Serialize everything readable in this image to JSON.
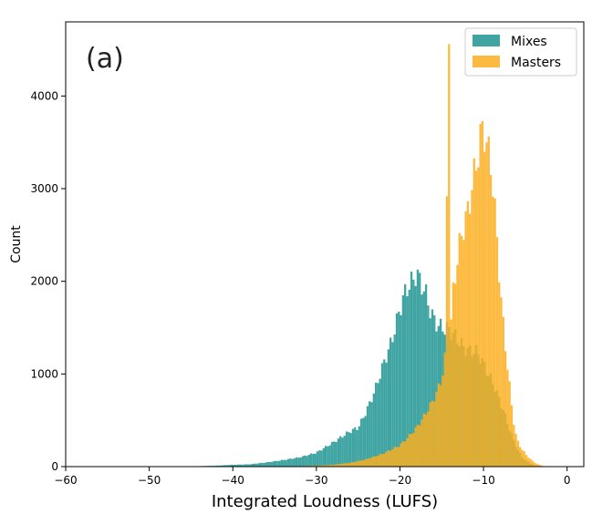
{
  "chart_data": {
    "type": "histogram",
    "panel_label": "(a)",
    "xlabel": "Integrated Loudness (LUFS)",
    "ylabel": "Count",
    "xlim": [
      -60,
      2
    ],
    "ylim": [
      0,
      4800
    ],
    "x_ticks": [
      -60,
      -50,
      -40,
      -30,
      -20,
      -10,
      0
    ],
    "x_tick_labels": [
      "−60",
      "−50",
      "−40",
      "−30",
      "−20",
      "−10",
      "0"
    ],
    "y_ticks": [
      0,
      1000,
      2000,
      3000,
      4000
    ],
    "y_tick_labels": [
      "0",
      "1000",
      "2000",
      "3000",
      "4000"
    ],
    "grid": false,
    "legend_position": "top-right",
    "bin_width": 0.25,
    "series": [
      {
        "name": "Mixes",
        "color": "#2a9a98",
        "alpha": 0.9,
        "bins": [
          [
            -44,
            5
          ],
          [
            -42,
            10
          ],
          [
            -40,
            20
          ],
          [
            -38,
            25
          ],
          [
            -36,
            45
          ],
          [
            -34,
            70
          ],
          [
            -32,
            100
          ],
          [
            -30,
            150
          ],
          [
            -28,
            260
          ],
          [
            -26,
            380
          ],
          [
            -25,
            420
          ],
          [
            -24,
            600
          ],
          [
            -23,
            820
          ],
          [
            -22,
            1100
          ],
          [
            -21,
            1350
          ],
          [
            -20,
            1700
          ],
          [
            -19.5,
            1850
          ],
          [
            -19,
            1950
          ],
          [
            -18.5,
            2000
          ],
          [
            -18,
            2090
          ],
          [
            -17.5,
            1980
          ],
          [
            -17,
            1900
          ],
          [
            -16.5,
            1720
          ],
          [
            -16,
            1600
          ],
          [
            -15.5,
            1530
          ],
          [
            -15,
            1500
          ],
          [
            -14.5,
            1490
          ],
          [
            -14,
            1470
          ],
          [
            -13.5,
            1420
          ],
          [
            -13,
            1360
          ],
          [
            -12.5,
            1300
          ],
          [
            -12,
            1260
          ],
          [
            -11.5,
            1240
          ],
          [
            -11,
            1250
          ],
          [
            -10.5,
            1200
          ],
          [
            -10,
            1110
          ],
          [
            -9.5,
            1010
          ],
          [
            -9,
            930
          ],
          [
            -8.5,
            820
          ],
          [
            -8,
            700
          ],
          [
            -7.5,
            580
          ],
          [
            -7,
            440
          ],
          [
            -6.5,
            310
          ],
          [
            -6,
            200
          ],
          [
            -5.5,
            120
          ],
          [
            -5,
            70
          ],
          [
            -4.5,
            40
          ],
          [
            -4,
            15
          ],
          [
            -3,
            5
          ],
          [
            -2,
            0
          ]
        ]
      },
      {
        "name": "Masters",
        "color": "#fbaf1e",
        "alpha": 0.85,
        "bins": [
          [
            -34,
            0
          ],
          [
            -30,
            10
          ],
          [
            -28,
            20
          ],
          [
            -26,
            40
          ],
          [
            -24,
            80
          ],
          [
            -22,
            140
          ],
          [
            -20,
            230
          ],
          [
            -19,
            320
          ],
          [
            -18,
            420
          ],
          [
            -17,
            560
          ],
          [
            -16,
            720
          ],
          [
            -15.5,
            820
          ],
          [
            -15,
            950
          ],
          [
            -14.75,
            1080
          ],
          [
            -14.5,
            1250
          ],
          [
            -14.25,
            4560
          ],
          [
            -14,
            1300
          ],
          [
            -13.75,
            1800
          ],
          [
            -13.5,
            2000
          ],
          [
            -13.25,
            2150
          ],
          [
            -13,
            2300
          ],
          [
            -12.75,
            2460
          ],
          [
            -12.5,
            2560
          ],
          [
            -12.25,
            2620
          ],
          [
            -12,
            2700
          ],
          [
            -11.75,
            2820
          ],
          [
            -11.5,
            2950
          ],
          [
            -11.25,
            3080
          ],
          [
            -11,
            3200
          ],
          [
            -10.75,
            3320
          ],
          [
            -10.5,
            3480
          ],
          [
            -10.25,
            3600
          ],
          [
            -10,
            3660
          ],
          [
            -9.75,
            3560
          ],
          [
            -9.5,
            3420
          ],
          [
            -9.25,
            3320
          ],
          [
            -9,
            3180
          ],
          [
            -8.75,
            2900
          ],
          [
            -8.5,
            2600
          ],
          [
            -8.25,
            2280
          ],
          [
            -8,
            1950
          ],
          [
            -7.75,
            1650
          ],
          [
            -7.5,
            1420
          ],
          [
            -7.25,
            1180
          ],
          [
            -7,
            980
          ],
          [
            -6.75,
            760
          ],
          [
            -6.5,
            560
          ],
          [
            -6.25,
            400
          ],
          [
            -6,
            290
          ],
          [
            -5.5,
            200
          ],
          [
            -5,
            140
          ],
          [
            -4.5,
            90
          ],
          [
            -4,
            50
          ],
          [
            -3.5,
            25
          ],
          [
            -3,
            10
          ],
          [
            -2.5,
            3
          ],
          [
            -2,
            0
          ]
        ]
      }
    ]
  }
}
